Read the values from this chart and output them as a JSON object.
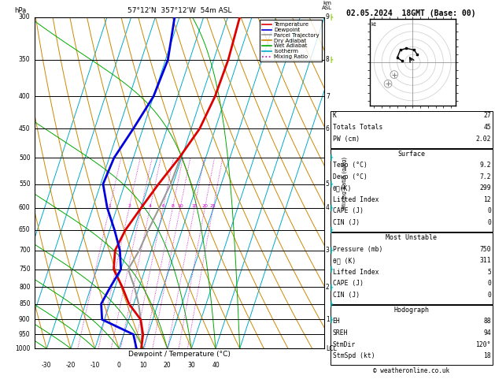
{
  "title_left": "57°12'N  357°12'W  54m ASL",
  "title_right": "02.05.2024  18GMT (Base: 00)",
  "xlabel": "Dewpoint / Temperature (°C)",
  "ylabel_left": "hPa",
  "pressure_levels": [
    300,
    350,
    400,
    450,
    500,
    550,
    600,
    650,
    700,
    750,
    800,
    850,
    900,
    950,
    1000
  ],
  "pressure_temp": [
    1000,
    950,
    900,
    850,
    800,
    750,
    700,
    650,
    600,
    550,
    500,
    450,
    400,
    350,
    300
  ],
  "temperature": [
    9.2,
    8.0,
    5.0,
    -2.0,
    -7.0,
    -13.0,
    -15.0,
    -13.5,
    -10.0,
    -6.0,
    -1.0,
    3.5,
    5.5,
    6.0,
    5.0
  ],
  "dewpoint": [
    7.2,
    4.0,
    -11.0,
    -13.5,
    -12.0,
    -10.0,
    -13.0,
    -18.0,
    -24.0,
    -29.0,
    -28.0,
    -24.0,
    -20.0,
    -19.0,
    -22.0
  ],
  "parcel_pressure": [
    1000,
    950,
    900,
    850,
    800,
    750,
    700,
    650,
    600,
    550,
    500
  ],
  "parcel_temp": [
    9.2,
    7.5,
    5.0,
    2.0,
    -2.0,
    -7.0,
    -5.0,
    -4.0,
    -2.5,
    -1.0,
    -0.5
  ],
  "km_labels": [
    [
      300,
      "9"
    ],
    [
      350,
      "8"
    ],
    [
      400,
      "7"
    ],
    [
      450,
      "6"
    ],
    [
      500,
      ""
    ],
    [
      550,
      "5"
    ],
    [
      600,
      "4"
    ],
    [
      650,
      ""
    ],
    [
      700,
      "3"
    ],
    [
      750,
      ""
    ],
    [
      800,
      "2"
    ],
    [
      850,
      ""
    ],
    [
      900,
      "1"
    ],
    [
      950,
      ""
    ],
    [
      1000,
      "LCL"
    ]
  ],
  "mixing_ratios": [
    1,
    2,
    3,
    4,
    6,
    8,
    10,
    15,
    20,
    25
  ],
  "xmin": -35,
  "xmax": 40,
  "pmin": 300,
  "pmax": 1000,
  "skew": 45,
  "bg_color": "#ffffff",
  "temp_color": "#dd0000",
  "dewp_color": "#0000dd",
  "parcel_color": "#999999",
  "dry_adiabat_color": "#cc8800",
  "wet_adiabat_color": "#00aa00",
  "isotherm_color": "#00aacc",
  "mixing_color": "#cc00cc",
  "stats": {
    "K": "27",
    "Totals Totals": "45",
    "PW (cm)": "2.02",
    "Surface_Temp": "9.2",
    "Surface_Dewp": "7.2",
    "Surface_thetae": "299",
    "Surface_LI": "12",
    "Surface_CAPE": "0",
    "Surface_CIN": "0",
    "MU_Pressure": "750",
    "MU_thetae": "311",
    "MU_LI": "5",
    "MU_CAPE": "0",
    "MU_CIN": "0",
    "Hodo_EH": "88",
    "Hodo_SREH": "94",
    "Hodo_StmDir": "120°",
    "Hodo_StmSpd": "18"
  },
  "copyright": "© weatheronline.co.uk",
  "wind_barb_cyan": "#00cccc",
  "wind_barb_green": "#88cc00",
  "legend_items": [
    [
      "Temperature",
      "#dd0000",
      "solid"
    ],
    [
      "Dewpoint",
      "#0000dd",
      "solid"
    ],
    [
      "Parcel Trajectory",
      "#999999",
      "solid"
    ],
    [
      "Dry Adiabat",
      "#cc8800",
      "solid"
    ],
    [
      "Wet Adiabat",
      "#00aa00",
      "solid"
    ],
    [
      "Isotherm",
      "#00aacc",
      "solid"
    ],
    [
      "Mixing Ratio",
      "#cc00cc",
      "dotted"
    ]
  ]
}
